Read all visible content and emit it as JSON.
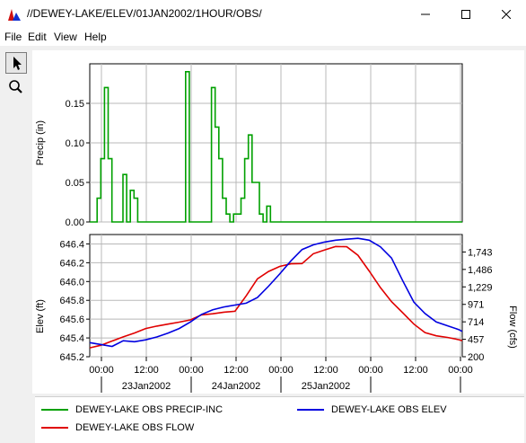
{
  "window": {
    "title": "//DEWEY-LAKE/ELEV/01JAN2002/1HOUR/OBS/",
    "minimize_glyph": "—",
    "maximize_glyph": "☐",
    "close_glyph": "✕"
  },
  "menu": {
    "items": [
      "File",
      "Edit",
      "View",
      "Help"
    ]
  },
  "toolbox": {
    "tools": [
      "pointer-icon",
      "zoom-icon"
    ]
  },
  "colors": {
    "precip": "#00a000",
    "elev": "#0000e0",
    "flow": "#e00000"
  },
  "chart_data": [
    {
      "type": "line",
      "step": true,
      "ylabel": "Precip (in)",
      "ylim": [
        0,
        0.2
      ],
      "yticks": [
        "0.00",
        "0.05",
        "0.10",
        "0.15"
      ],
      "series": [
        {
          "name": "DEWEY-LAKE OBS PRECIP-INC",
          "x": [
            0,
            1,
            2,
            3,
            4,
            5,
            6,
            7,
            8,
            9,
            10,
            11,
            12,
            13,
            14,
            15,
            16,
            17,
            18,
            19,
            20,
            21,
            22,
            23,
            24,
            25,
            26,
            27,
            28,
            29,
            30,
            31,
            32,
            33,
            34,
            35,
            36,
            37,
            38,
            39,
            40,
            41,
            42,
            43,
            44,
            45,
            46,
            47,
            48,
            49,
            50,
            51,
            52,
            53,
            54,
            55,
            56,
            57,
            58,
            59,
            60,
            61,
            62,
            63,
            64,
            65,
            66,
            67,
            68,
            69,
            70,
            71,
            72,
            73,
            74,
            75,
            76,
            77,
            78,
            79,
            80,
            81,
            82,
            83,
            84,
            85,
            86,
            87,
            88,
            89,
            90,
            91,
            92,
            93,
            94,
            95,
            96,
            97,
            98,
            99,
            100
          ],
          "values": [
            0,
            0,
            0.03,
            0.08,
            0.17,
            0.08,
            0,
            0,
            0,
            0.06,
            0,
            0.04,
            0.03,
            0,
            0,
            0,
            0,
            0,
            0,
            0,
            0,
            0,
            0,
            0,
            0,
            0,
            0.19,
            0,
            0,
            0,
            0,
            0,
            0,
            0.17,
            0.12,
            0.08,
            0.03,
            0.01,
            0,
            0.01,
            0.01,
            0.03,
            0.08,
            0.11,
            0.05,
            0.05,
            0.01,
            0,
            0.02,
            0,
            0,
            0,
            0,
            0,
            0,
            0,
            0,
            0,
            0,
            0,
            0,
            0,
            0,
            0,
            0,
            0,
            0,
            0,
            0,
            0,
            0,
            0,
            0,
            0,
            0,
            0,
            0,
            0,
            0,
            0,
            0,
            0,
            0,
            0,
            0,
            0,
            0,
            0,
            0,
            0,
            0,
            0,
            0,
            0,
            0,
            0,
            0,
            0,
            0,
            0,
            0
          ]
        }
      ]
    },
    {
      "type": "line",
      "ylabel": "Elev (ft)",
      "ylabel_right": "Flow (cfs)",
      "ylim": [
        646.2,
        646.5
      ],
      "yticks": [
        "645.2",
        "645.4",
        "645.6",
        "645.8",
        "646.0",
        "646.2",
        "646.4"
      ],
      "yticks_right": [
        "200",
        "457",
        "714",
        "971",
        "1,229",
        "1,486",
        "1,743"
      ],
      "xticks": [
        "00:00",
        "12:00",
        "00:00",
        "12:00",
        "00:00",
        "12:00",
        "00:00",
        "12:00",
        "00:00"
      ],
      "date_labels": [
        "23Jan2002",
        "24Jan2002",
        "25Jan2002"
      ],
      "series": [
        {
          "name": "DEWEY-LAKE OBS ELEV",
          "x": [
            0,
            3,
            6,
            9,
            12,
            15,
            18,
            21,
            24,
            27,
            30,
            33,
            36,
            39,
            42,
            45,
            48,
            51,
            54,
            57,
            60,
            63,
            66,
            69,
            72,
            75,
            78,
            81,
            84,
            87,
            90,
            93,
            96,
            99,
            100
          ],
          "values": [
            645.35,
            645.33,
            645.31,
            645.37,
            645.36,
            645.38,
            645.41,
            645.45,
            645.5,
            645.57,
            645.65,
            645.7,
            645.73,
            645.75,
            645.77,
            645.83,
            645.95,
            646.08,
            646.22,
            646.34,
            646.39,
            646.42,
            646.44,
            646.45,
            646.46,
            646.44,
            646.37,
            646.25,
            646.01,
            645.78,
            645.66,
            645.57,
            645.53,
            645.49,
            645.47
          ]
        },
        {
          "name": "DEWEY-LAKE OBS FLOW",
          "x": [
            0,
            3,
            6,
            9,
            12,
            15,
            18,
            21,
            24,
            27,
            30,
            33,
            36,
            39,
            42,
            45,
            48,
            51,
            54,
            57,
            60,
            63,
            66,
            69,
            72,
            75,
            78,
            81,
            84,
            87,
            90,
            93,
            96,
            99,
            100
          ],
          "values": [
            331,
            370,
            431,
            493,
            550,
            616,
            651,
            680,
            710,
            742,
            817,
            832,
            857,
            870,
            1098,
            1347,
            1456,
            1530,
            1568,
            1573,
            1717,
            1773,
            1824,
            1820,
            1694,
            1462,
            1220,
            1011,
            849,
            681,
            556,
            508,
            484,
            452,
            437
          ]
        }
      ]
    }
  ],
  "legend": {
    "entries": [
      "DEWEY-LAKE OBS PRECIP-INC",
      "DEWEY-LAKE OBS ELEV",
      "DEWEY-LAKE OBS FLOW"
    ]
  }
}
